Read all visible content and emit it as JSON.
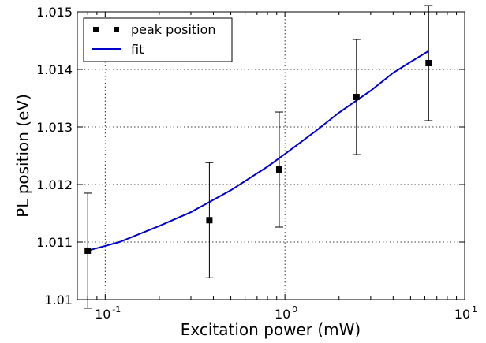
{
  "chart_data": {
    "type": "scatter",
    "xlabel": "Excitation power (mW)",
    "ylabel": "PL position (eV)",
    "xscale": "log",
    "xlim": [
      0.07,
      10
    ],
    "ylim": [
      1.01,
      1.015
    ],
    "grid": true,
    "legend_placement": "top-left",
    "x_tick_labels": [
      "10",
      "10",
      "10"
    ],
    "x_tick_exponents": [
      "-1",
      "0",
      "1"
    ],
    "x_tick_values": [
      0.1,
      1,
      10
    ],
    "y_tick_labels": [
      "1.01",
      "1.011",
      "1.012",
      "1.013",
      "1.014",
      "1.015"
    ],
    "y_tick_values": [
      1.01,
      1.011,
      1.012,
      1.013,
      1.014,
      1.015
    ],
    "series": [
      {
        "name": "peak position",
        "kind": "points-with-errorbars",
        "color": "#000000",
        "points": [
          {
            "x": 0.08,
            "y": 1.01085,
            "err": 0.001
          },
          {
            "x": 0.38,
            "y": 1.01138,
            "err": 0.001
          },
          {
            "x": 0.93,
            "y": 1.01226,
            "err": 0.001
          },
          {
            "x": 2.5,
            "y": 1.01352,
            "err": 0.001
          },
          {
            "x": 6.3,
            "y": 1.01411,
            "err": 0.001
          }
        ]
      },
      {
        "name": "fit",
        "kind": "line",
        "color": "#0000cc",
        "x": [
          0.08,
          0.12,
          0.2,
          0.3,
          0.5,
          0.8,
          1.0,
          1.5,
          2.0,
          3.0,
          4.0,
          5.0,
          6.3
        ],
        "y": [
          1.01085,
          1.011,
          1.01128,
          1.01152,
          1.0119,
          1.01231,
          1.01253,
          1.01294,
          1.01325,
          1.01363,
          1.01394,
          1.01413,
          1.01432
        ]
      }
    ]
  }
}
